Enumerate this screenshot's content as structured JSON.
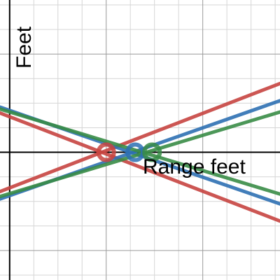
{
  "chart_data": {
    "type": "line",
    "title": "",
    "xlabel": "Range feet",
    "ylabel": "Feet",
    "xlim": [
      -0.2,
      5.6
    ],
    "ylim": [
      -2.6,
      3.1
    ],
    "grid": true,
    "series": [
      {
        "color": "#c74440",
        "style": "line",
        "x": [
          -0.2,
          5.6
        ],
        "y": [
          -0.8,
          1.4
        ]
      },
      {
        "color": "#c74440",
        "style": "line",
        "x": [
          -0.2,
          5.6
        ],
        "y": [
          0.8,
          -1.4
        ]
      },
      {
        "color": "#2d70b3",
        "style": "line",
        "x": [
          -0.2,
          5.6
        ],
        "y": [
          -0.95,
          1.05
        ]
      },
      {
        "color": "#2d70b3",
        "style": "line",
        "x": [
          -0.2,
          5.6
        ],
        "y": [
          0.92,
          -1.05
        ]
      },
      {
        "color": "#388c46",
        "style": "line",
        "x": [
          -0.2,
          5.6
        ],
        "y": [
          -0.9,
          0.82
        ]
      },
      {
        "color": "#388c46",
        "style": "line",
        "x": [
          -0.2,
          5.6
        ],
        "y": [
          0.88,
          -0.85
        ]
      },
      {
        "color": "#c74440",
        "style": "point",
        "x": [
          2.0
        ],
        "y": [
          0.0
        ]
      },
      {
        "color": "#2d70b3",
        "style": "point",
        "x": [
          2.6
        ],
        "y": [
          0.0
        ]
      },
      {
        "color": "#388c46",
        "style": "point",
        "x": [
          2.95
        ],
        "y": [
          0.0
        ]
      }
    ]
  }
}
